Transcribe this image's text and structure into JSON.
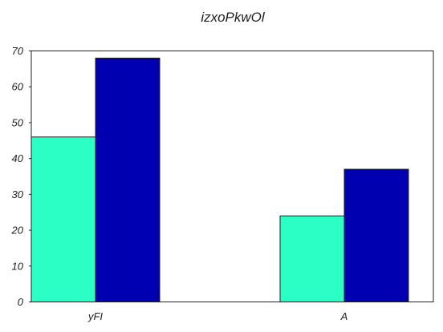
{
  "chart_data": {
    "type": "bar",
    "title": "izxoPkwOl",
    "xlabel": "",
    "ylabel": "",
    "categories": [
      "yFI",
      "A"
    ],
    "series": [
      {
        "values": [
          46,
          24
        ],
        "color": "#2bffc6"
      },
      {
        "values": [
          68,
          37
        ],
        "color": "#0000b0"
      }
    ],
    "ylim": [
      0,
      70
    ],
    "yticks": [
      0,
      10,
      20,
      30,
      40,
      50,
      60,
      70
    ],
    "ytick_labels": [
      "0",
      "10",
      "20",
      "30",
      "40",
      "50",
      "60",
      "70"
    ],
    "grid": false,
    "legend": "none"
  }
}
